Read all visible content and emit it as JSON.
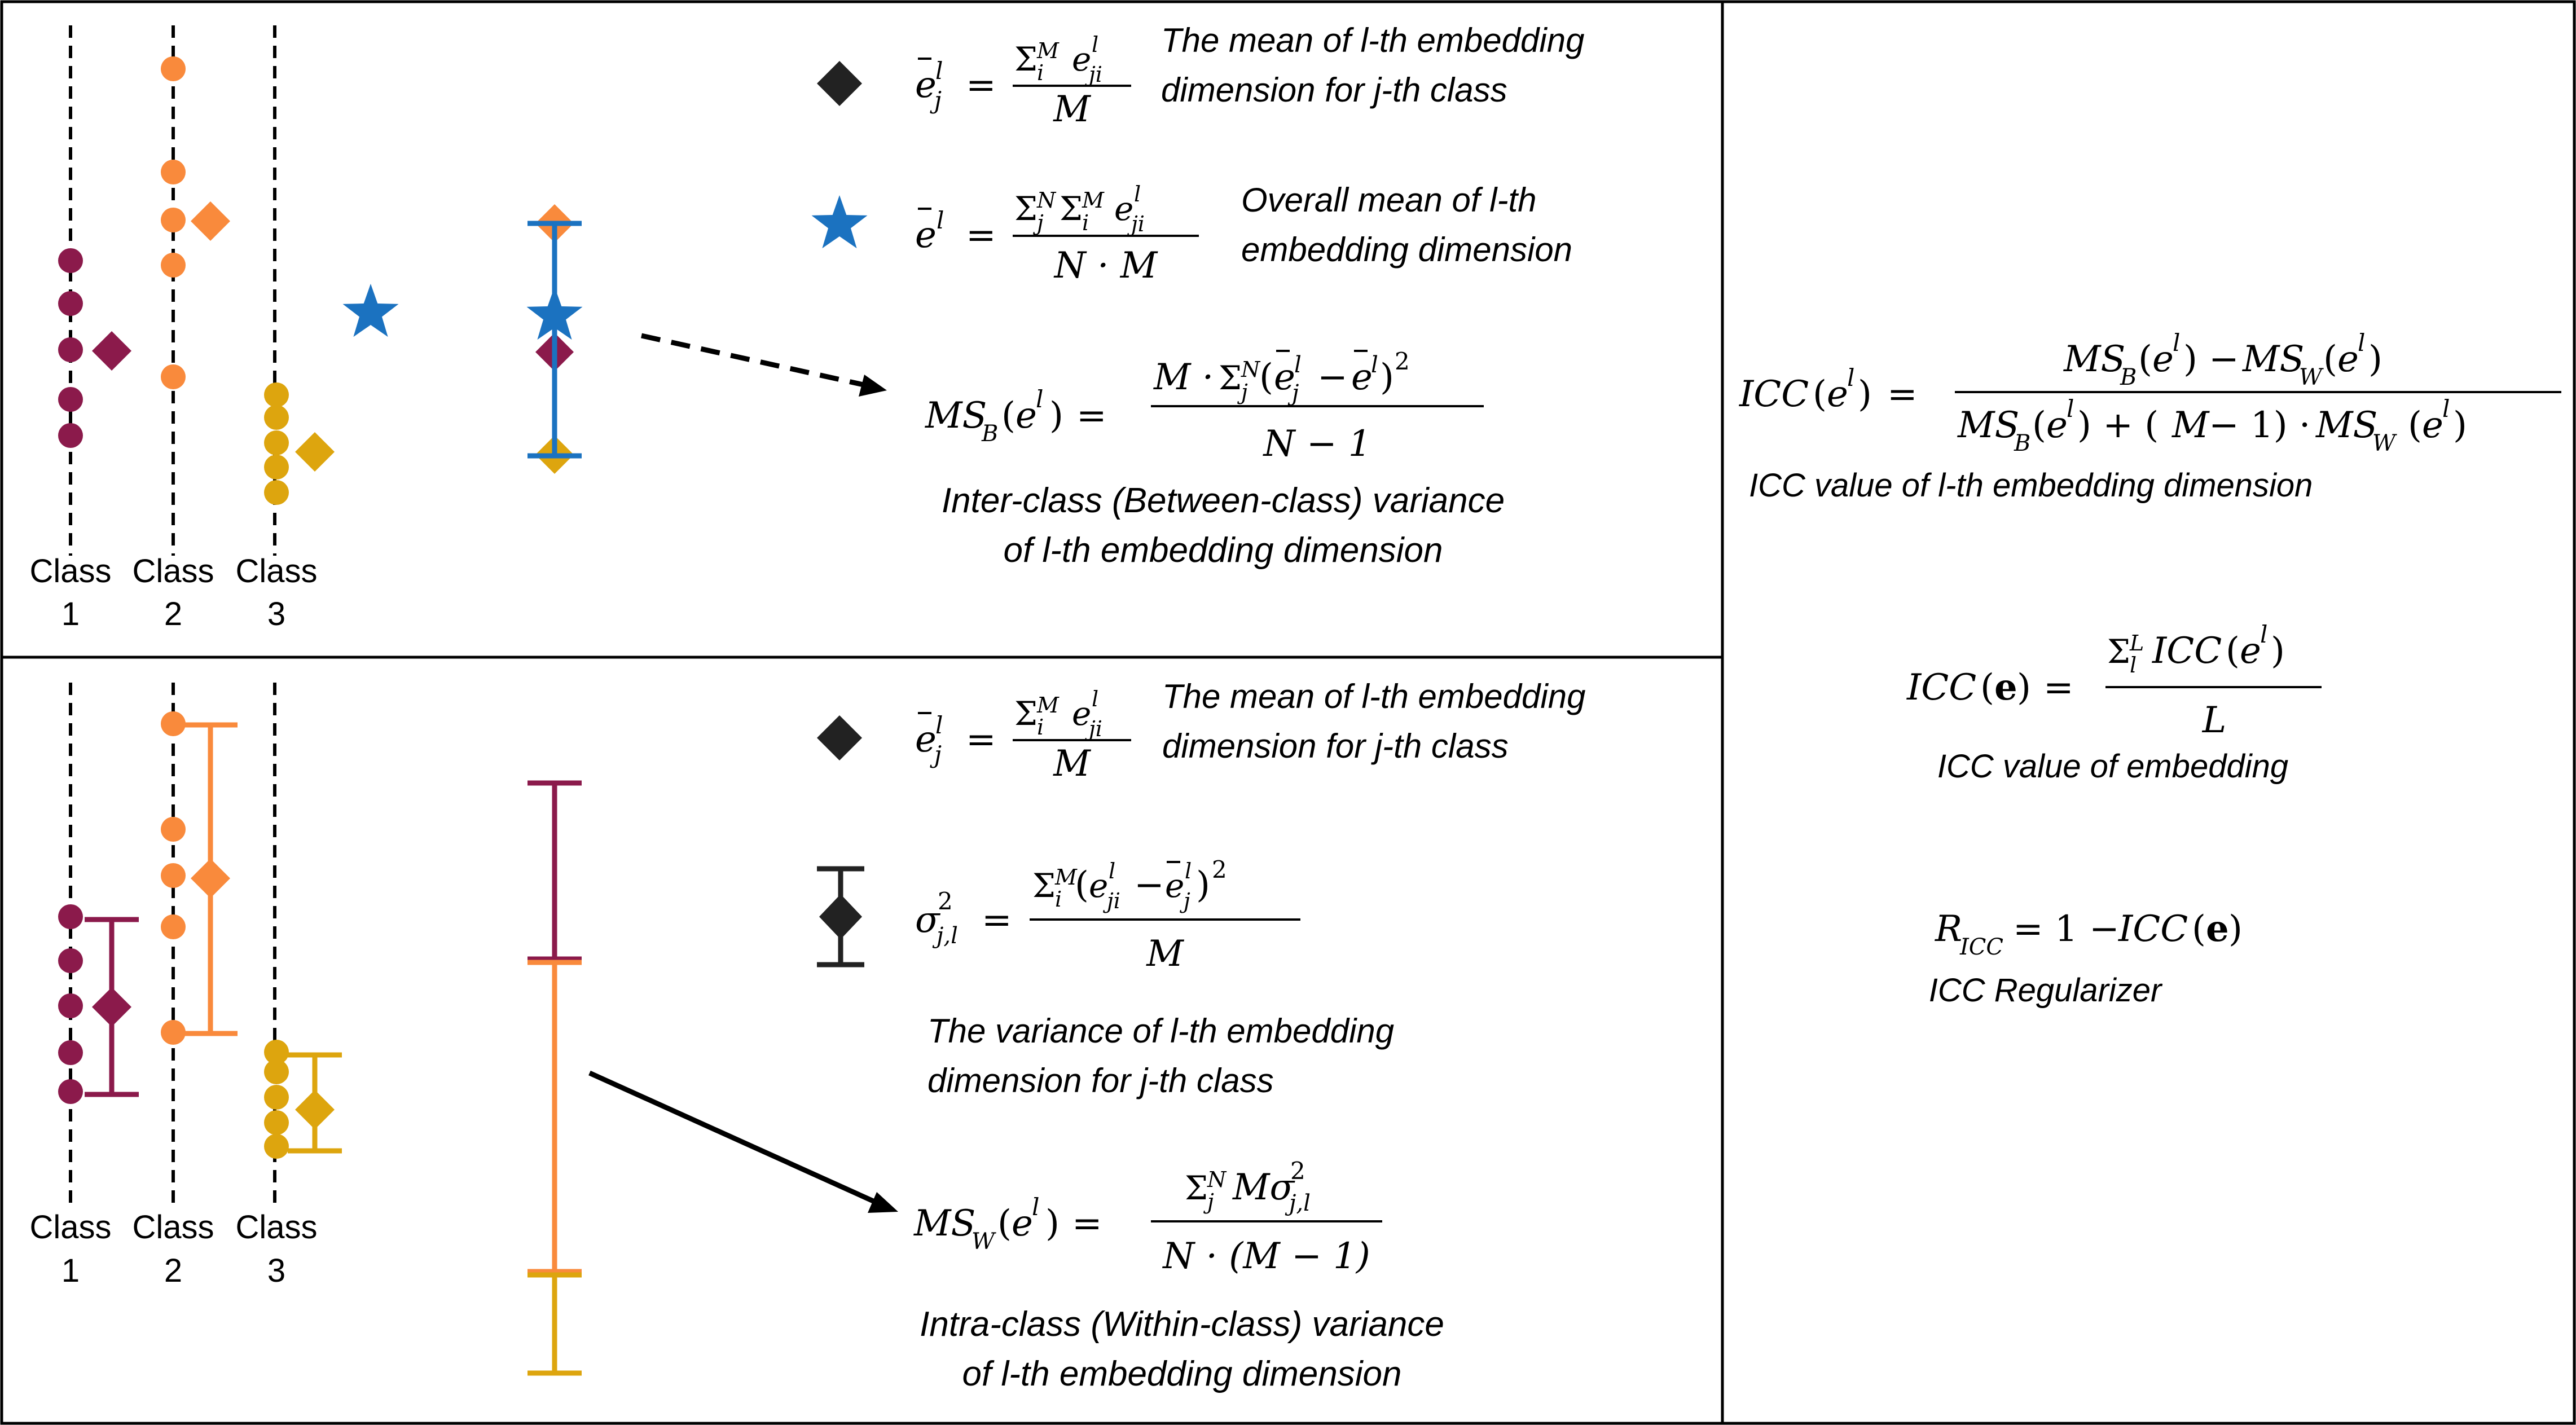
{
  "colors": {
    "class1": "#8B1A4B",
    "class2": "#F98A3C",
    "class3": "#DDA50E",
    "overall": "#1B72C0",
    "ink": "#000000"
  },
  "top_panel": {
    "class_labels": [
      {
        "word": "Class",
        "num": "1"
      },
      {
        "word": "Class",
        "num": "2"
      },
      {
        "word": "Class",
        "num": "3"
      }
    ],
    "class_mean_marker": "diamond",
    "class_mean_formula": "e̅ⱼˡ = Σᵢᴹ eⱼᵢˡ / M",
    "class_mean_desc": [
      "The mean of l-th embedding",
      "dimension for j-th class"
    ],
    "overall_mean_marker": "star",
    "overall_mean_formula": "e̅ˡ = Σⱼᴺ Σᵢᴹ eⱼᵢˡ / (N · M)",
    "overall_mean_desc": [
      "Overall mean of l-th",
      "embedding dimension"
    ],
    "msb_formula": "MS_B(eˡ) = M · Σⱼᴺ(e̅ⱼˡ − e̅ˡ)² / (N − 1)",
    "msb_desc": [
      "Inter-class (Between-class) variance",
      "of l-th embedding dimension"
    ]
  },
  "bottom_panel": {
    "class_labels": [
      {
        "word": "Class",
        "num": "1"
      },
      {
        "word": "Class",
        "num": "2"
      },
      {
        "word": "Class",
        "num": "3"
      }
    ],
    "class_mean_marker": "diamond",
    "class_mean_formula": "e̅ⱼˡ = Σᵢᴹ eⱼᵢˡ / M",
    "class_mean_desc": [
      "The mean of l-th embedding",
      "dimension for j-th class"
    ],
    "variance_marker": "diamond-with-error-bar",
    "variance_formula": "σ²ⱼ,ₗ = Σᵢᴹ(eⱼᵢˡ − e̅ⱼˡ)² / M",
    "variance_desc": [
      "The variance of l-th embedding",
      "dimension for j-th class"
    ],
    "msw_formula": "MS_W(eˡ) = Σⱼᴺ Mσ²ⱼ,ₗ / (N · (M − 1))",
    "msw_desc": [
      "Intra-class (Within-class) variance",
      "of l-th embedding dimension"
    ]
  },
  "right_panel": {
    "icc_formula": "ICC(eˡ) = (MS_B(eˡ) − MS_W(eˡ)) / (MS_B(eˡ) + (M − 1) · MS_W(eˡ))",
    "icc_desc": "ICC value of l-th embedding dimension",
    "icc_e_formula": "ICC(e) = Σₗᴸ ICC(eˡ) / L",
    "icc_e_desc": "ICC value of embedding",
    "ricc_formula": "R_ICC = 1 − ICC(e)",
    "ricc_desc": "ICC Regularizer"
  }
}
